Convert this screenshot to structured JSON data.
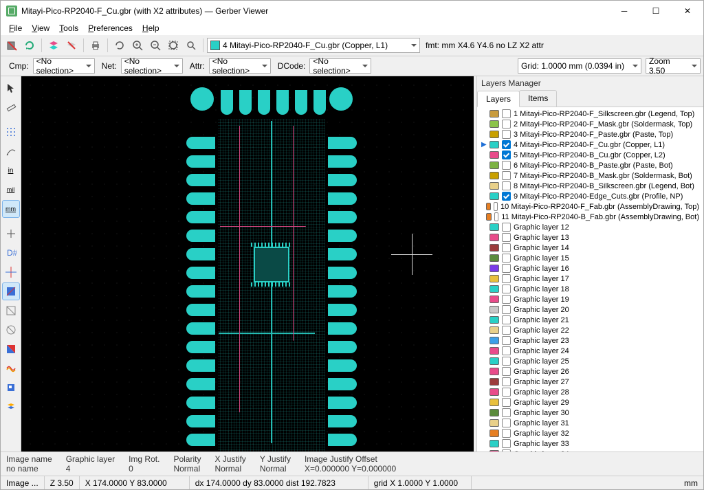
{
  "title": "Mitayi-Pico-RP2040-F_Cu.gbr (with X2 attributes) — Gerber Viewer",
  "menu": [
    "File",
    "View",
    "Tools",
    "Preferences",
    "Help"
  ],
  "toolbar1": {
    "layer_dd": "4 Mitayi-Pico-RP2040-F_Cu.gbr (Copper, L1)",
    "fmt": "fmt: mm X4.6 Y4.6 no LZ X2 attr"
  },
  "toolbar2": {
    "cmp_label": "Cmp:",
    "cmp_val": "<No selection>",
    "net_label": "Net:",
    "net_val": "<No selection>",
    "attr_label": "Attr:",
    "attr_val": "<No selection>",
    "dcode_label": "DCode:",
    "dcode_val": "<No selection>",
    "grid_val": "Grid: 1.0000 mm (0.0394 in)",
    "zoom_val": "Zoom 3.50"
  },
  "right": {
    "title": "Layers Manager",
    "tabs": [
      "Layers",
      "Items"
    ],
    "layers": [
      {
        "color": "#c89b3c",
        "checked": false,
        "label": "1 Mitayi-Pico-RP2040-F_Silkscreen.gbr (Legend, Top)",
        "arrow": false
      },
      {
        "color": "#8bc34a",
        "checked": false,
        "label": "2 Mitayi-Pico-RP2040-F_Mask.gbr (Soldermask, Top)",
        "arrow": false
      },
      {
        "color": "#c8a000",
        "checked": false,
        "label": "3 Mitayi-Pico-RP2040-F_Paste.gbr (Paste, Top)",
        "arrow": false
      },
      {
        "color": "#29d0c6",
        "checked": true,
        "label": "4 Mitayi-Pico-RP2040-F_Cu.gbr (Copper, L1)",
        "arrow": true
      },
      {
        "color": "#e84b8a",
        "checked": true,
        "label": "5 Mitayi-Pico-RP2040-B_Cu.gbr (Copper, L2)",
        "arrow": false
      },
      {
        "color": "#7cb342",
        "checked": false,
        "label": "6 Mitayi-Pico-RP2040-B_Paste.gbr (Paste, Bot)",
        "arrow": false
      },
      {
        "color": "#c8a000",
        "checked": false,
        "label": "7 Mitayi-Pico-RP2040-B_Mask.gbr (Soldermask, Bot)",
        "arrow": false
      },
      {
        "color": "#e8d08a",
        "checked": false,
        "label": "8 Mitayi-Pico-RP2040-B_Silkscreen.gbr (Legend, Bot)",
        "arrow": false
      },
      {
        "color": "#29d0c6",
        "checked": true,
        "label": "9 Mitayi-Pico-RP2040-Edge_Cuts.gbr (Profile, NP)",
        "arrow": false
      },
      {
        "color": "#e67e22",
        "checked": false,
        "label": "10 Mitayi-Pico-RP2040-F_Fab.gbr (AssemblyDrawing, Top)",
        "arrow": false
      },
      {
        "color": "#e67e22",
        "checked": false,
        "label": "11 Mitayi-Pico-RP2040-B_Fab.gbr (AssemblyDrawing, Bot)",
        "arrow": false
      }
    ],
    "graphic_colors": [
      "#29d0c6",
      "#e84b8a",
      "#9b3c3c",
      "#5a8b3c",
      "#7a3ce8",
      "#e8c03c",
      "#29d0c6",
      "#e84b8a",
      "#c8c8c8",
      "#29d0c6",
      "#e8d08a",
      "#3ca0e8",
      "#e84b8a",
      "#29d0c6",
      "#e84b8a",
      "#9b3c3c",
      "#e84b8a",
      "#e8c03c",
      "#5a8b3c",
      "#e8d08a",
      "#e67e22",
      "#29d0c6",
      "#e84b8a",
      "#29d0c6",
      "#e8d08a",
      "#29d0c6"
    ],
    "graphic_label": "Graphic layer "
  },
  "info": {
    "rows": [
      {
        "h": "Image name",
        "v": "no name"
      },
      {
        "h": "Graphic layer",
        "v": "4"
      },
      {
        "h": "Img Rot.",
        "v": "0"
      },
      {
        "h": "Polarity",
        "v": "Normal"
      },
      {
        "h": "X Justify",
        "v": "Normal"
      },
      {
        "h": "Y Justify",
        "v": "Normal"
      },
      {
        "h": "Image Justify Offset",
        "v": "X=0.000000 Y=0.000000"
      }
    ]
  },
  "status": {
    "cells": [
      "Image ...",
      "Z 3.50",
      "X 174.0000  Y 83.0000",
      "dx 174.0000  dy 83.0000  dist 192.7823",
      "grid X 1.0000  Y 1.0000",
      "mm"
    ]
  },
  "colors": {
    "accent": "#0078d4",
    "pcb": "#29d0c6",
    "pink": "#e84b8a"
  }
}
